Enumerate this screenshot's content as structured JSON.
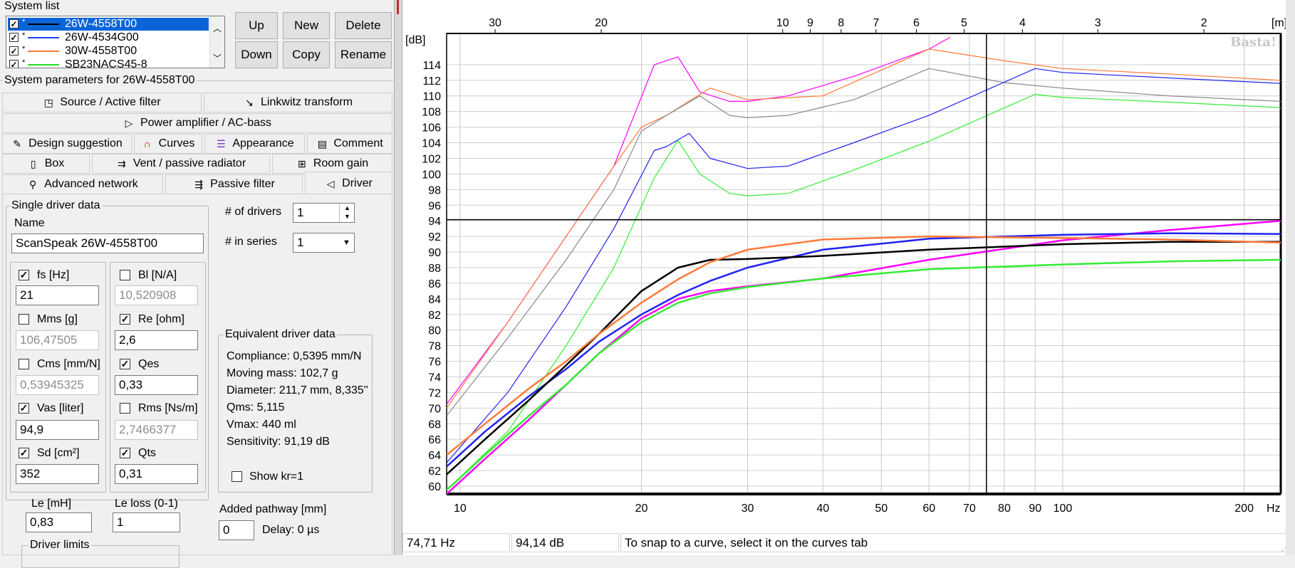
{
  "system_list": {
    "title": "System list",
    "items": [
      {
        "name": "26W-4558T00",
        "color": "#000000",
        "checked": true,
        "selected": true
      },
      {
        "name": "26W-4534G00",
        "color": "#1f3fff",
        "checked": true,
        "selected": false
      },
      {
        "name": "30W-4558T00",
        "color": "#ff7a3a",
        "checked": true,
        "selected": false
      },
      {
        "name": "SB23NACS45-8",
        "color": "#22dd22",
        "checked": true,
        "selected": false
      }
    ],
    "buttons": {
      "up": "Up",
      "new": "New",
      "delete": "Delete",
      "down": "Down",
      "copy": "Copy",
      "rename": "Rename"
    }
  },
  "params_title": "System parameters for 26W-4558T00",
  "tabs": {
    "row1": [
      "Source / Active filter",
      "Linkwitz transform"
    ],
    "row2": [
      "Power amplifier / AC-bass"
    ],
    "row3": [
      "Design suggestion",
      "Curves",
      "Appearance",
      "Comment"
    ],
    "row4": [
      "Box",
      "Vent / passive radiator",
      "Room gain"
    ],
    "row5": [
      "Advanced network",
      "Passive filter",
      "Driver"
    ]
  },
  "driver": {
    "group_title": "Single driver data",
    "name_label": "Name",
    "name_value": "ScanSpeak 26W-4558T00",
    "num_drivers_label": "# of drivers",
    "num_drivers_value": "1",
    "in_series_label": "# in series",
    "in_series_value": "1",
    "params": {
      "fs": {
        "label": "fs [Hz]",
        "value": "21",
        "checked": true
      },
      "bl": {
        "label": "Bl [N/A]",
        "value": "10,520908",
        "checked": false
      },
      "mms": {
        "label": "Mms [g]",
        "value": "106,47505",
        "checked": false
      },
      "re": {
        "label": "Re [ohm]",
        "value": "2,6",
        "checked": true
      },
      "cms": {
        "label": "Cms [mm/N]",
        "value": "0,53945325",
        "checked": false
      },
      "qes": {
        "label": "Qes",
        "value": "0,33",
        "checked": true
      },
      "vas": {
        "label": "Vas [liter]",
        "value": "94,9",
        "checked": true
      },
      "rms": {
        "label": "Rms [Ns/m]",
        "value": "2,7466377",
        "checked": false
      },
      "sd": {
        "label": "Sd [cm²]",
        "value": "352",
        "checked": true
      },
      "qts": {
        "label": "Qts",
        "value": "0,31",
        "checked": true
      }
    },
    "le_label": "Le [mH]",
    "le_value": "0,83",
    "le_loss_label": "Le loss (0-1)",
    "le_loss_value": "1",
    "limits_title": "Driver limits"
  },
  "equivalent": {
    "title": "Equivalent driver data",
    "lines": [
      "Compliance: 0,5395 mm/N",
      "Moving mass: 102,7 g",
      "Diameter: 211,7 mm, 8,335''",
      "Qms: 5,115",
      "Vmax: 440 ml",
      "Sensitivity: 91,19 dB"
    ],
    "show_kr_label": "Show kr=1"
  },
  "pathway": {
    "label": "Added pathway [mm]",
    "value": "0",
    "delay": "Delay: 0 µs"
  },
  "status": {
    "freq": "74,71 Hz",
    "level": "94,14 dB",
    "hint": "To snap to a curve, select it on the curves tab"
  },
  "chart_data": {
    "type": "line",
    "watermark": "Basta!",
    "ylabel": "[dB]",
    "xlabel": "Hz",
    "top_unit": "[m]",
    "x_scale": "log",
    "xlim": [
      9.5,
      230
    ],
    "ylim": [
      59,
      118
    ],
    "y_ticks": [
      60,
      62,
      64,
      66,
      68,
      70,
      72,
      74,
      76,
      78,
      80,
      82,
      84,
      86,
      88,
      90,
      92,
      94,
      96,
      98,
      100,
      102,
      104,
      106,
      108,
      110,
      112,
      114
    ],
    "x_ticks": [
      10,
      20,
      30,
      40,
      50,
      60,
      70,
      80,
      90,
      100,
      200
    ],
    "x_tick_labels": [
      "10",
      "20",
      "30",
      "40",
      "50",
      "60",
      "70",
      "80",
      "90",
      "100",
      "200"
    ],
    "top_ticks": [
      30,
      20,
      10,
      9,
      8,
      7,
      6,
      5,
      4,
      3,
      2
    ],
    "top_tick_labels": [
      "30",
      "20",
      "10",
      "9",
      "8",
      "7",
      "6",
      "5",
      "4",
      "3",
      "2"
    ],
    "cursor": {
      "x": 74.71,
      "y": 94.14
    },
    "grid": true,
    "series": [
      {
        "color": "#ff00ff",
        "width": 1.2,
        "x": [
          9.5,
          12,
          15,
          18,
          21,
          23,
          25,
          28,
          30,
          35,
          45,
          60,
          65
        ],
        "y": [
          70.5,
          81,
          92,
          101,
          114,
          115,
          110.5,
          109.3,
          109.3,
          110,
          112.5,
          116,
          117.5
        ]
      },
      {
        "color": "#ff7a3a",
        "width": 1.2,
        "x": [
          9.5,
          12,
          15,
          18,
          20,
          22,
          26,
          30,
          40,
          60,
          80,
          100,
          150,
          230
        ],
        "y": [
          70,
          81,
          92,
          101,
          106,
          107.5,
          111,
          109.5,
          110,
          116,
          114.5,
          113.5,
          112.8,
          112
        ]
      },
      {
        "color": "#888888",
        "width": 1.2,
        "x": [
          9.5,
          12,
          15,
          18,
          20,
          22,
          25,
          28,
          30,
          35,
          45,
          60,
          80,
          100,
          150,
          230
        ],
        "y": [
          69,
          79,
          89,
          98,
          105.5,
          107.5,
          110,
          107.5,
          107.2,
          107.5,
          109.5,
          113.5,
          111.7,
          111,
          110,
          109.3
        ]
      },
      {
        "color": "#2222ee",
        "width": 1.2,
        "x": [
          9.5,
          12,
          15,
          18,
          21,
          22,
          24,
          26,
          30,
          35,
          45,
          60,
          90,
          100,
          150,
          230
        ],
        "y": [
          63,
          72,
          83,
          93,
          103,
          103.5,
          105.2,
          102,
          100.7,
          101,
          104,
          107.5,
          113.5,
          113,
          112.3,
          111.6
        ]
      },
      {
        "color": "#33ee33",
        "width": 1.2,
        "x": [
          9.5,
          12,
          15,
          18,
          21,
          23,
          25,
          28,
          30,
          35,
          45,
          60,
          90,
          100,
          150,
          230
        ],
        "y": [
          59.5,
          67,
          78,
          88,
          99.5,
          104.3,
          100,
          97.5,
          97.2,
          97.5,
          100.5,
          104.2,
          110.2,
          109.8,
          109.2,
          108.5
        ]
      },
      {
        "color": "#ff00ff",
        "width": 2.5,
        "x": [
          9.5,
          11,
          13,
          15,
          17,
          20,
          23,
          26,
          30,
          40,
          60,
          100,
          150,
          230
        ],
        "y": [
          59,
          63.5,
          68.5,
          73,
          77,
          81.5,
          84,
          85,
          85.6,
          86.6,
          89,
          91.5,
          92.8,
          94
        ]
      },
      {
        "color": "#33ee33",
        "width": 2.5,
        "x": [
          9.5,
          11,
          13,
          15,
          17,
          20,
          23,
          26,
          30,
          40,
          60,
          100,
          150,
          230
        ],
        "y": [
          59.5,
          64,
          69,
          73,
          77,
          81,
          83.5,
          84.7,
          85.5,
          86.6,
          87.8,
          88.4,
          88.8,
          89
        ]
      },
      {
        "color": "#2222ee",
        "width": 2.5,
        "x": [
          9.5,
          11,
          13,
          15,
          17,
          20,
          23,
          26,
          30,
          40,
          60,
          100,
          150,
          230
        ],
        "y": [
          62.5,
          67,
          71.5,
          75,
          78.5,
          82,
          84.5,
          86.3,
          88,
          90.3,
          91.7,
          92.2,
          92.4,
          92.3
        ]
      },
      {
        "color": "#000000",
        "width": 2.5,
        "x": [
          9.5,
          11,
          13,
          15,
          17,
          20,
          23,
          26,
          30,
          40,
          60,
          100,
          150,
          230
        ],
        "y": [
          61.5,
          66,
          71,
          75.5,
          79.5,
          85,
          88,
          89,
          89.1,
          89.5,
          90.3,
          91,
          91.3,
          91.3
        ]
      },
      {
        "color": "#ff7a3a",
        "width": 2.5,
        "x": [
          9.5,
          11,
          13,
          15,
          17,
          20,
          23,
          26,
          30,
          40,
          60,
          100,
          150,
          230
        ],
        "y": [
          64,
          68,
          72.5,
          76,
          79.5,
          83.5,
          86.5,
          88.7,
          90.3,
          91.6,
          92,
          91.8,
          91.6,
          91.2
        ]
      }
    ]
  }
}
